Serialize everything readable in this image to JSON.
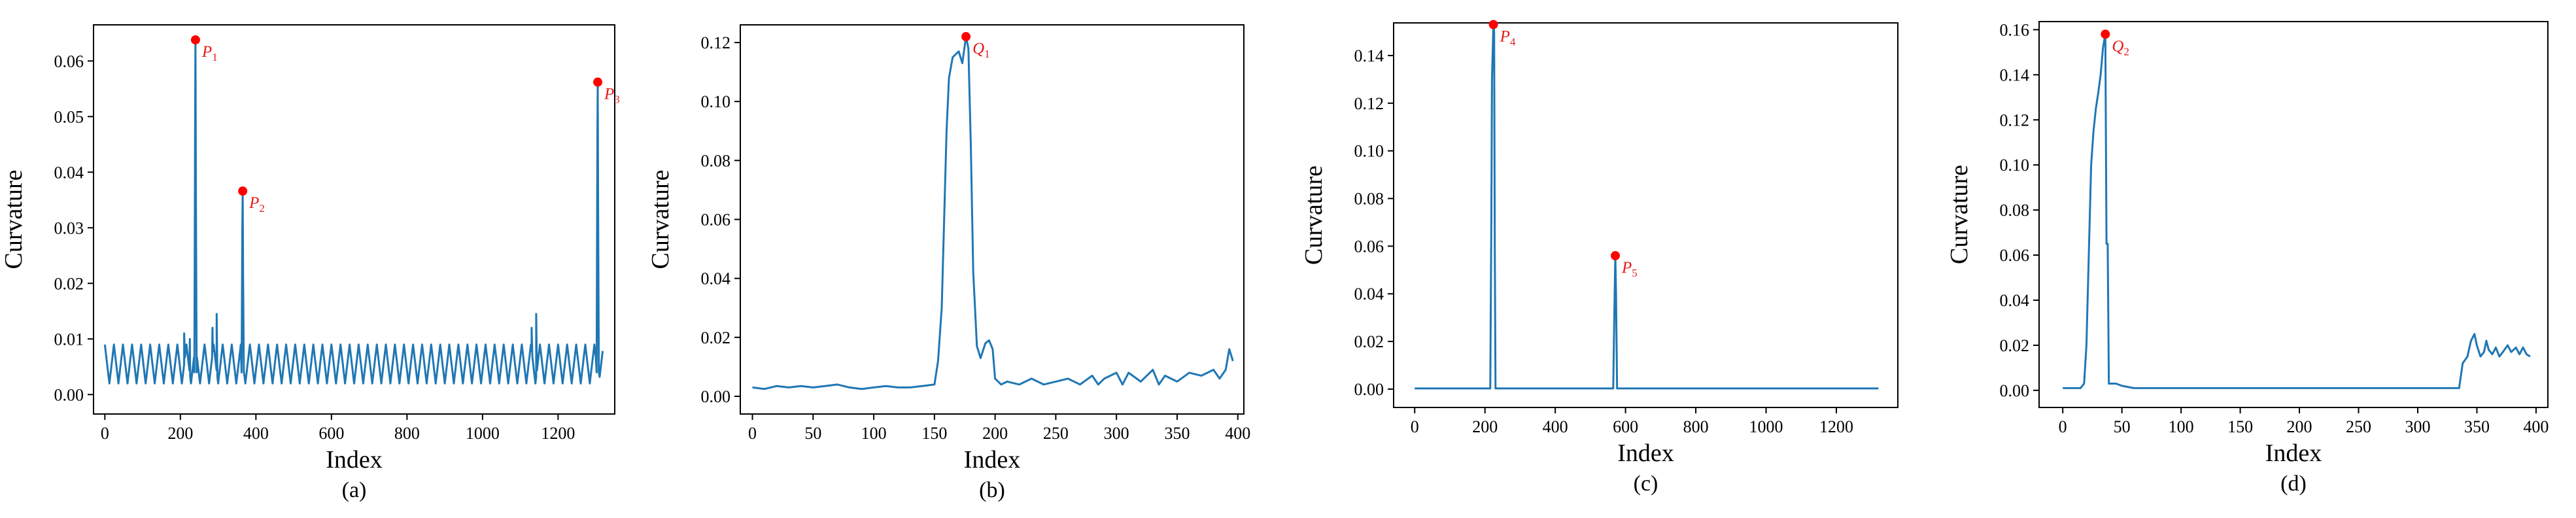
{
  "chart_data": [
    {
      "type": "line",
      "panel": "(a)",
      "xlabel": "Index",
      "ylabel": "Curvature",
      "xlim": [
        -30,
        1350
      ],
      "ylim": [
        -0.0035,
        0.0665
      ],
      "xticks": [
        0,
        200,
        400,
        600,
        800,
        1000,
        1200
      ],
      "yticks": [
        0.0,
        0.01,
        0.02,
        0.03,
        0.04,
        0.05,
        0.06
      ],
      "ytick_decimals": 2,
      "line_color": "#1f77b4",
      "marker_color": "#ff0000",
      "generator": {
        "kind": "oscillating",
        "n": 1320,
        "period": 24,
        "low": 0.002,
        "high": 0.009,
        "bumps": [
          [
            210,
            0.011
          ],
          [
            225,
            0.01
          ],
          [
            285,
            0.012
          ],
          [
            296,
            0.0145
          ],
          [
            1130,
            0.012
          ],
          [
            1142,
            0.0145
          ]
        ]
      },
      "peaks": [
        {
          "x": 240,
          "y": 0.0638,
          "label": "P",
          "sub": "1"
        },
        {
          "x": 365,
          "y": 0.0366,
          "label": "P",
          "sub": "2"
        },
        {
          "x": 1305,
          "y": 0.0562,
          "label": "P",
          "sub": "3"
        }
      ]
    },
    {
      "type": "line",
      "panel": "(b)",
      "xlabel": "Index",
      "ylabel": "Curvature",
      "xlim": [
        -10,
        405
      ],
      "ylim": [
        -0.006,
        0.126
      ],
      "xticks": [
        0,
        50,
        100,
        150,
        200,
        250,
        300,
        350,
        400
      ],
      "yticks": [
        0.0,
        0.02,
        0.04,
        0.06,
        0.08,
        0.1,
        0.12
      ],
      "ytick_decimals": 2,
      "line_color": "#1f77b4",
      "marker_color": "#ff0000",
      "points": [
        [
          0,
          0.003
        ],
        [
          10,
          0.0025
        ],
        [
          20,
          0.0035
        ],
        [
          30,
          0.003
        ],
        [
          40,
          0.0035
        ],
        [
          50,
          0.003
        ],
        [
          60,
          0.0035
        ],
        [
          70,
          0.004
        ],
        [
          80,
          0.003
        ],
        [
          90,
          0.0025
        ],
        [
          100,
          0.003
        ],
        [
          110,
          0.0035
        ],
        [
          120,
          0.003
        ],
        [
          130,
          0.003
        ],
        [
          140,
          0.0035
        ],
        [
          150,
          0.004
        ],
        [
          153,
          0.012
        ],
        [
          156,
          0.03
        ],
        [
          158,
          0.06
        ],
        [
          160,
          0.09
        ],
        [
          162,
          0.108
        ],
        [
          165,
          0.115
        ],
        [
          170,
          0.117
        ],
        [
          173,
          0.113
        ],
        [
          176,
          0.122
        ],
        [
          178,
          0.118
        ],
        [
          180,
          0.085
        ],
        [
          182,
          0.042
        ],
        [
          185,
          0.017
        ],
        [
          188,
          0.013
        ],
        [
          192,
          0.018
        ],
        [
          195,
          0.019
        ],
        [
          198,
          0.016
        ],
        [
          200,
          0.006
        ],
        [
          205,
          0.004
        ],
        [
          210,
          0.005
        ],
        [
          220,
          0.004
        ],
        [
          230,
          0.006
        ],
        [
          240,
          0.004
        ],
        [
          250,
          0.005
        ],
        [
          260,
          0.006
        ],
        [
          270,
          0.004
        ],
        [
          280,
          0.007
        ],
        [
          285,
          0.004
        ],
        [
          290,
          0.006
        ],
        [
          300,
          0.008
        ],
        [
          305,
          0.004
        ],
        [
          310,
          0.008
        ],
        [
          320,
          0.005
        ],
        [
          330,
          0.009
        ],
        [
          335,
          0.004
        ],
        [
          340,
          0.007
        ],
        [
          350,
          0.005
        ],
        [
          360,
          0.008
        ],
        [
          370,
          0.007
        ],
        [
          380,
          0.009
        ],
        [
          385,
          0.006
        ],
        [
          390,
          0.009
        ],
        [
          393,
          0.016
        ],
        [
          396,
          0.012
        ]
      ],
      "peaks": [
        {
          "x": 176,
          "y": 0.122,
          "label": "Q",
          "sub": "1"
        }
      ]
    },
    {
      "type": "line",
      "panel": "(c)",
      "xlabel": "Index",
      "ylabel": "Curvature",
      "xlim": [
        -60,
        1375
      ],
      "ylim": [
        -0.0077,
        0.1537
      ],
      "xticks": [
        0,
        200,
        400,
        600,
        800,
        1000,
        1200
      ],
      "yticks": [
        0.0,
        0.02,
        0.04,
        0.06,
        0.08,
        0.1,
        0.12,
        0.14
      ],
      "ytick_decimals": 2,
      "line_color": "#1f77b4",
      "marker_color": "#ff0000",
      "points": [
        [
          0,
          0.0003
        ],
        [
          215,
          0.0003
        ],
        [
          218,
          0.07
        ],
        [
          220,
          0.13
        ],
        [
          224,
          0.153
        ],
        [
          226,
          0.15
        ],
        [
          228,
          0.06
        ],
        [
          230,
          0.0003
        ],
        [
          565,
          0.0003
        ],
        [
          568,
          0.03
        ],
        [
          571,
          0.056
        ],
        [
          573,
          0.04
        ],
        [
          576,
          0.0003
        ],
        [
          1320,
          0.0003
        ]
      ],
      "peaks": [
        {
          "x": 224,
          "y": 0.153,
          "label": "P",
          "sub": "4"
        },
        {
          "x": 571,
          "y": 0.056,
          "label": "P",
          "sub": "5"
        }
      ]
    },
    {
      "type": "line",
      "panel": "(d)",
      "xlabel": "Index",
      "ylabel": "Curvature",
      "xlim": [
        -20,
        410
      ],
      "ylim": [
        -0.0076,
        0.1636
      ],
      "xticks": [
        0,
        50,
        100,
        150,
        200,
        250,
        300,
        350,
        400
      ],
      "yticks": [
        0.0,
        0.02,
        0.04,
        0.06,
        0.08,
        0.1,
        0.12,
        0.14,
        0.16
      ],
      "ytick_decimals": 2,
      "line_color": "#1f77b4",
      "marker_color": "#ff0000",
      "points": [
        [
          0,
          0.001
        ],
        [
          15,
          0.001
        ],
        [
          18,
          0.003
        ],
        [
          20,
          0.02
        ],
        [
          22,
          0.06
        ],
        [
          24,
          0.1
        ],
        [
          26,
          0.115
        ],
        [
          28,
          0.125
        ],
        [
          30,
          0.132
        ],
        [
          32,
          0.14
        ],
        [
          34,
          0.152
        ],
        [
          36,
          0.158
        ],
        [
          37,
          0.065
        ],
        [
          38,
          0.065
        ],
        [
          39,
          0.003
        ],
        [
          45,
          0.003
        ],
        [
          50,
          0.002
        ],
        [
          60,
          0.001
        ],
        [
          100,
          0.001
        ],
        [
          200,
          0.001
        ],
        [
          300,
          0.001
        ],
        [
          335,
          0.001
        ],
        [
          338,
          0.012
        ],
        [
          342,
          0.015
        ],
        [
          345,
          0.022
        ],
        [
          348,
          0.025
        ],
        [
          350,
          0.02
        ],
        [
          353,
          0.015
        ],
        [
          356,
          0.017
        ],
        [
          358,
          0.022
        ],
        [
          360,
          0.018
        ],
        [
          363,
          0.016
        ],
        [
          366,
          0.019
        ],
        [
          369,
          0.015
        ],
        [
          372,
          0.017
        ],
        [
          376,
          0.02
        ],
        [
          379,
          0.017
        ],
        [
          383,
          0.019
        ],
        [
          386,
          0.016
        ],
        [
          389,
          0.019
        ],
        [
          392,
          0.016
        ],
        [
          395,
          0.015
        ]
      ],
      "peaks": [
        {
          "x": 36,
          "y": 0.158,
          "label": "Q",
          "sub": "2"
        }
      ]
    }
  ]
}
